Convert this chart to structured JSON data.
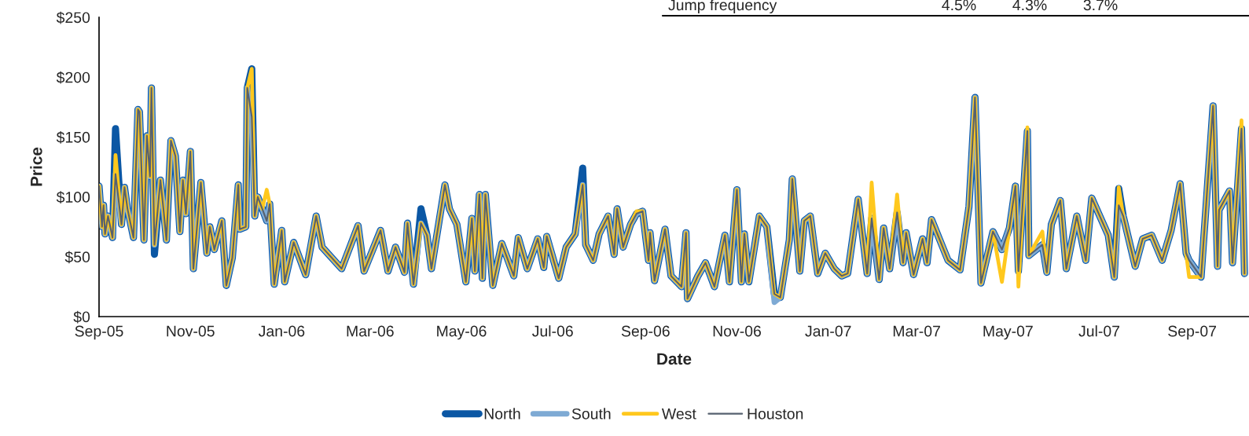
{
  "chart_data": {
    "type": "line",
    "xlabel": "Date",
    "ylabel": "Price",
    "x": [
      "2005-09-01",
      "2005-09-03",
      "2005-09-04",
      "2005-09-05",
      "2005-09-07",
      "2005-09-10",
      "2005-09-12",
      "2005-09-16",
      "2005-09-18",
      "2005-09-20",
      "2005-09-24",
      "2005-09-27",
      "2005-09-28",
      "2005-10-01",
      "2005-10-03",
      "2005-10-05",
      "2005-10-06",
      "2005-10-08",
      "2005-10-12",
      "2005-10-14",
      "2005-10-16",
      "2005-10-19",
      "2005-10-22",
      "2005-10-25",
      "2005-10-27",
      "2005-10-29",
      "2005-11-01",
      "2005-11-03",
      "2005-11-08",
      "2005-11-12",
      "2005-11-14",
      "2005-11-17",
      "2005-11-22",
      "2005-11-25",
      "2005-11-29",
      "2005-12-03",
      "2005-12-04",
      "2005-12-08",
      "2005-12-09",
      "2005-12-12",
      "2005-12-14",
      "2005-12-16",
      "2005-12-19",
      "2005-12-22",
      "2005-12-24",
      "2005-12-27",
      "2006-01-01",
      "2006-01-03",
      "2006-01-09",
      "2006-01-17",
      "2006-01-24",
      "2006-01-28",
      "2006-02-10",
      "2006-02-21",
      "2006-02-25",
      "2006-03-08",
      "2006-03-13",
      "2006-03-18",
      "2006-03-24",
      "2006-03-26",
      "2006-03-30",
      "2006-04-04",
      "2006-04-08",
      "2006-04-11",
      "2006-04-20",
      "2006-04-23",
      "2006-04-28",
      "2006-05-04",
      "2006-05-08",
      "2006-05-10",
      "2006-05-13",
      "2006-05-15",
      "2006-05-17",
      "2006-05-22",
      "2006-05-28",
      "2006-06-05",
      "2006-06-08",
      "2006-06-14",
      "2006-06-21",
      "2006-06-25",
      "2006-06-27",
      "2006-07-05",
      "2006-07-10",
      "2006-07-16",
      "2006-07-21",
      "2006-07-23",
      "2006-07-28",
      "2006-08-01",
      "2006-08-07",
      "2006-08-11",
      "2006-08-13",
      "2006-08-17",
      "2006-08-22",
      "2006-08-26",
      "2006-08-30",
      "2006-09-03",
      "2006-09-04",
      "2006-09-07",
      "2006-09-14",
      "2006-09-18",
      "2006-09-25",
      "2006-09-28",
      "2006-09-29",
      "2006-10-06",
      "2006-10-11",
      "2006-10-17",
      "2006-10-24",
      "2006-10-27",
      "2006-11-01",
      "2006-11-04",
      "2006-11-06",
      "2006-11-09",
      "2006-11-16",
      "2006-11-21",
      "2006-11-26",
      "2006-11-30",
      "2006-12-06",
      "2006-12-08",
      "2006-12-13",
      "2006-12-16",
      "2006-12-20",
      "2006-12-25",
      "2006-12-30",
      "2007-01-05",
      "2007-01-10",
      "2007-01-14",
      "2007-01-21",
      "2007-01-27",
      "2007-01-30",
      "2007-02-04",
      "2007-02-07",
      "2007-02-11",
      "2007-02-16",
      "2007-02-20",
      "2007-02-22",
      "2007-02-27",
      "2007-03-05",
      "2007-03-08",
      "2007-03-11",
      "2007-03-22",
      "2007-03-30",
      "2007-04-05",
      "2007-04-09",
      "2007-04-13",
      "2007-04-21",
      "2007-04-27",
      "2007-05-02",
      "2007-05-06",
      "2007-05-08",
      "2007-05-14",
      "2007-05-15",
      "2007-05-24",
      "2007-05-27",
      "2007-05-30",
      "2007-06-05",
      "2007-06-09",
      "2007-06-16",
      "2007-06-22",
      "2007-06-26",
      "2007-07-07",
      "2007-07-11",
      "2007-07-14",
      "2007-07-17",
      "2007-07-25",
      "2007-07-30",
      "2007-08-05",
      "2007-08-12",
      "2007-08-18",
      "2007-08-24",
      "2007-08-28",
      "2007-08-30",
      "2007-09-07",
      "2007-09-15",
      "2007-09-18",
      "2007-09-19",
      "2007-09-26",
      "2007-09-28",
      "2007-10-04",
      "2007-10-06"
    ],
    "series": [
      {
        "name": "North",
        "color": "#0b57a4",
        "values": [
          109,
          75,
          93,
          69,
          84,
          66,
          157,
          77,
          108,
          90,
          66,
          173,
          171,
          64,
          151,
          117,
          191,
          52,
          114,
          90,
          64,
          147,
          134,
          71,
          114,
          86,
          138,
          40,
          112,
          53,
          75,
          56,
          80,
          26,
          49,
          110,
          73,
          75,
          191,
          207,
          84,
          100,
          90,
          80,
          94,
          27,
          72,
          29,
          62,
          35,
          84,
          58,
          40,
          76,
          38,
          72,
          38,
          58,
          37,
          78,
          27,
          90,
          68,
          40,
          110,
          90,
          77,
          29,
          82,
          38,
          102,
          32,
          102,
          26,
          61,
          34,
          66,
          40,
          65,
          41,
          67,
          32,
          58,
          69,
          124,
          60,
          47,
          69,
          84,
          52,
          90,
          58,
          77,
          86,
          88,
          47,
          70,
          30,
          73,
          34,
          25,
          70,
          15,
          34,
          45,
          25,
          68,
          29,
          106,
          29,
          69,
          29,
          84,
          75,
          19,
          16,
          64,
          115,
          38,
          80,
          84,
          36,
          53,
          40,
          34,
          36,
          98,
          36,
          82,
          31,
          74,
          40,
          87,
          45,
          70,
          35,
          65,
          45,
          81,
          47,
          39,
          92,
          183,
          28,
          71,
          56,
          74,
          109,
          38,
          155,
          51,
          60,
          37,
          77,
          97,
          40,
          84,
          47,
          99,
          68,
          33,
          107,
          84,
          42,
          65,
          68,
          47,
          72,
          111,
          53,
          47,
          33,
          176,
          42,
          89,
          105,
          45,
          157,
          36
        ]
      },
      {
        "name": "South",
        "color": "#7eaad4",
        "values": [
          109,
          75,
          93,
          69,
          84,
          66,
          119,
          77,
          108,
          90,
          66,
          173,
          171,
          64,
          151,
          117,
          191,
          60,
          114,
          90,
          64,
          147,
          134,
          71,
          114,
          86,
          138,
          40,
          112,
          53,
          75,
          56,
          80,
          26,
          49,
          110,
          73,
          75,
          191,
          167,
          84,
          100,
          90,
          80,
          94,
          27,
          72,
          29,
          62,
          35,
          84,
          58,
          40,
          76,
          38,
          72,
          38,
          58,
          37,
          78,
          27,
          78,
          68,
          40,
          110,
          90,
          77,
          29,
          82,
          38,
          102,
          32,
          102,
          26,
          61,
          34,
          66,
          40,
          65,
          41,
          67,
          32,
          58,
          69,
          110,
          60,
          47,
          69,
          84,
          52,
          90,
          58,
          77,
          86,
          88,
          47,
          70,
          30,
          73,
          34,
          25,
          70,
          15,
          34,
          45,
          25,
          68,
          29,
          106,
          29,
          69,
          29,
          84,
          75,
          12,
          16,
          64,
          115,
          38,
          80,
          84,
          36,
          53,
          40,
          34,
          36,
          98,
          36,
          82,
          31,
          74,
          40,
          87,
          45,
          70,
          35,
          65,
          45,
          81,
          47,
          39,
          92,
          183,
          28,
          71,
          56,
          74,
          109,
          38,
          155,
          51,
          60,
          37,
          77,
          97,
          40,
          84,
          47,
          99,
          68,
          33,
          93,
          84,
          42,
          65,
          68,
          47,
          72,
          111,
          53,
          47,
          33,
          176,
          42,
          89,
          105,
          45,
          157,
          36
        ]
      },
      {
        "name": "West",
        "color": "#ffc81e",
        "values": [
          109,
          75,
          93,
          69,
          84,
          66,
          135,
          77,
          108,
          90,
          66,
          173,
          171,
          64,
          151,
          117,
          191,
          60,
          114,
          90,
          64,
          147,
          134,
          71,
          114,
          86,
          138,
          40,
          112,
          53,
          75,
          56,
          80,
          26,
          49,
          110,
          73,
          75,
          191,
          207,
          84,
          100,
          90,
          106,
          94,
          27,
          72,
          29,
          62,
          35,
          84,
          58,
          40,
          76,
          38,
          72,
          38,
          58,
          37,
          78,
          27,
          78,
          68,
          40,
          110,
          90,
          77,
          29,
          82,
          38,
          102,
          32,
          102,
          26,
          61,
          34,
          66,
          40,
          65,
          41,
          67,
          32,
          58,
          69,
          110,
          60,
          47,
          69,
          84,
          52,
          90,
          58,
          77,
          88,
          88,
          47,
          70,
          30,
          73,
          34,
          25,
          70,
          15,
          34,
          45,
          25,
          68,
          29,
          106,
          29,
          69,
          29,
          84,
          75,
          19,
          16,
          64,
          115,
          38,
          80,
          84,
          36,
          53,
          40,
          34,
          36,
          98,
          36,
          112,
          31,
          74,
          40,
          102,
          45,
          70,
          35,
          65,
          45,
          81,
          47,
          39,
          92,
          183,
          28,
          71,
          29,
          74,
          109,
          25,
          158,
          51,
          71,
          37,
          77,
          97,
          40,
          84,
          47,
          99,
          68,
          33,
          108,
          84,
          42,
          65,
          68,
          47,
          72,
          111,
          53,
          33,
          33,
          176,
          42,
          89,
          105,
          45,
          164,
          36
        ]
      },
      {
        "name": "Houston",
        "color": "#56616f",
        "values": [
          109,
          75,
          93,
          69,
          84,
          66,
          119,
          77,
          108,
          90,
          66,
          173,
          171,
          64,
          151,
          117,
          191,
          60,
          114,
          90,
          64,
          147,
          134,
          71,
          114,
          86,
          138,
          40,
          112,
          53,
          75,
          56,
          80,
          26,
          49,
          110,
          73,
          75,
          191,
          167,
          84,
          100,
          90,
          80,
          94,
          27,
          72,
          29,
          62,
          35,
          84,
          58,
          40,
          76,
          38,
          72,
          38,
          58,
          37,
          78,
          27,
          78,
          68,
          40,
          110,
          90,
          77,
          29,
          82,
          38,
          102,
          32,
          102,
          26,
          61,
          34,
          66,
          40,
          65,
          41,
          67,
          32,
          58,
          69,
          110,
          60,
          47,
          69,
          84,
          52,
          90,
          58,
          77,
          86,
          88,
          47,
          70,
          30,
          73,
          34,
          25,
          70,
          15,
          34,
          45,
          25,
          68,
          29,
          106,
          29,
          69,
          29,
          84,
          75,
          19,
          16,
          64,
          115,
          38,
          80,
          84,
          36,
          53,
          40,
          34,
          36,
          98,
          36,
          82,
          31,
          74,
          40,
          87,
          45,
          70,
          35,
          65,
          45,
          81,
          47,
          39,
          92,
          183,
          28,
          71,
          56,
          74,
          109,
          38,
          155,
          51,
          60,
          37,
          77,
          97,
          40,
          84,
          47,
          99,
          68,
          33,
          93,
          84,
          42,
          65,
          68,
          47,
          72,
          111,
          53,
          47,
          33,
          176,
          42,
          89,
          105,
          45,
          157,
          36
        ]
      }
    ],
    "xlim": [
      "2005-09-01",
      "2007-10-09"
    ],
    "xticks": [
      {
        "value": "2005-09-01",
        "label": "Sep-05"
      },
      {
        "value": "2005-11-01",
        "label": "Nov-05"
      },
      {
        "value": "2006-01-01",
        "label": "Jan-06"
      },
      {
        "value": "2006-03-01",
        "label": "Mar-06"
      },
      {
        "value": "2006-05-01",
        "label": "May-06"
      },
      {
        "value": "2006-07-01",
        "label": "Jul-06"
      },
      {
        "value": "2006-09-01",
        "label": "Sep-06"
      },
      {
        "value": "2006-11-01",
        "label": "Nov-06"
      },
      {
        "value": "2007-01-01",
        "label": "Jan-07"
      },
      {
        "value": "2007-03-01",
        "label": "Mar-07"
      },
      {
        "value": "2007-05-01",
        "label": "May-07"
      },
      {
        "value": "2007-07-01",
        "label": "Jul-07"
      },
      {
        "value": "2007-09-01",
        "label": "Sep-07"
      }
    ],
    "ylim": [
      0,
      250
    ],
    "yticks": [
      {
        "value": 0,
        "label": "$0"
      },
      {
        "value": 50,
        "label": "$50"
      },
      {
        "value": 100,
        "label": "$100"
      },
      {
        "value": 150,
        "label": "$150"
      },
      {
        "value": 200,
        "label": "$200"
      },
      {
        "value": 250,
        "label": "$250"
      }
    ],
    "grid": false,
    "legend": "bottom",
    "marker": "none",
    "line_style": "solid",
    "annotations": [
      "Jump frequency",
      "4.5%",
      "4.3%",
      "3.7%"
    ]
  }
}
